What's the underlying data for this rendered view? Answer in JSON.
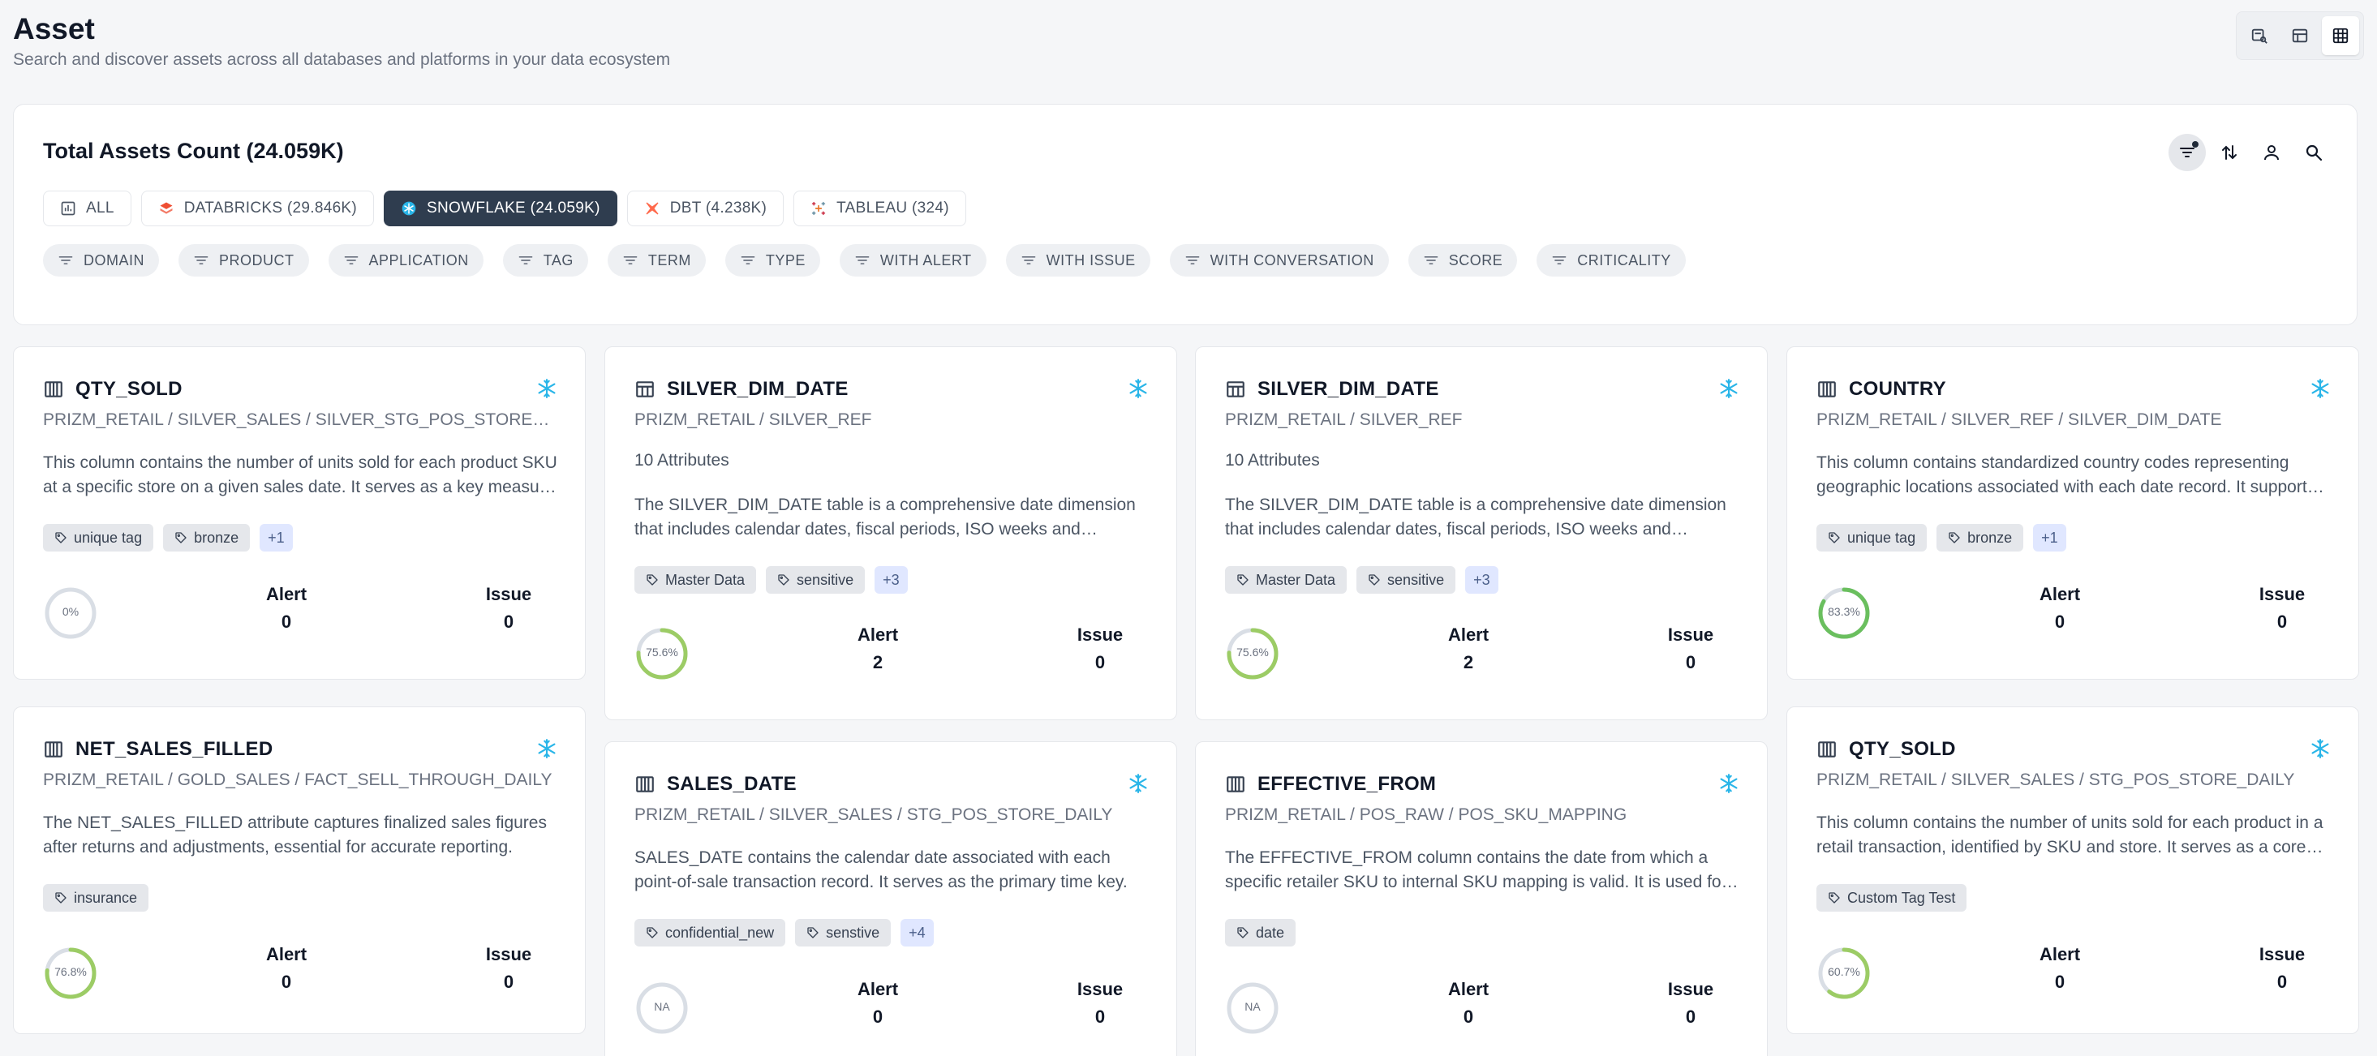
{
  "header": {
    "title": "Asset",
    "subtitle": "Search and discover assets across all databases and platforms in your data ecosystem"
  },
  "view_switch": [
    {
      "icon": "search-list-icon"
    },
    {
      "icon": "table-icon"
    },
    {
      "icon": "grid-icon",
      "active": true
    }
  ],
  "summary": {
    "title": "Total Assets Count (24.059K)",
    "actions": [
      {
        "icon": "filter-icon"
      },
      {
        "icon": "sort-icon"
      },
      {
        "icon": "user-icon"
      },
      {
        "icon": "search-icon"
      }
    ],
    "tabs": [
      {
        "label": "ALL",
        "icon": "chart-icon"
      },
      {
        "label": "DATABRICKS (29.846K)",
        "icon": "databricks-icon"
      },
      {
        "label": "SNOWFLAKE (24.059K)",
        "icon": "snowflake-icon",
        "active": true
      },
      {
        "label": "DBT (4.238K)",
        "icon": "dbt-icon"
      },
      {
        "label": "TABLEAU (324)",
        "icon": "tableau-icon"
      }
    ],
    "filters": [
      "DOMAIN",
      "PRODUCT",
      "APPLICATION",
      "TAG",
      "TERM",
      "TYPE",
      "WITH ALERT",
      "WITH ISSUE",
      "WITH CONVERSATION",
      "SCORE",
      "CRITICALITY"
    ]
  },
  "metric_labels": {
    "alert": "Alert",
    "issue": "Issue"
  },
  "cards": [
    {
      "title": "QTY_SOLD",
      "kind": "column",
      "path": "PRIZM_RETAIL / SILVER_SALES / SILVER_STG_POS_STORE_DAILY",
      "description": "This column contains the number of units sold for each product SKU at a specific store on a given sales date. It serves as a key measure for sales analysis.",
      "tags": [
        "unique tag",
        "bronze"
      ],
      "more": "+1",
      "score_label": "0%",
      "score": 0,
      "alert": "0",
      "issue": "0"
    },
    {
      "title": "SILVER_DIM_DATE",
      "kind": "table",
      "path": "PRIZM_RETAIL / SILVER_REF",
      "attributes": "10 Attributes",
      "description": "The SILVER_DIM_DATE table is a comprehensive date dimension that includes calendar dates, fiscal periods, ISO weeks and holidays.",
      "tags": [
        "Master Data",
        "sensitive"
      ],
      "more": "+3",
      "score_label": "75.6%",
      "score": 0.756,
      "alert": "2",
      "issue": "0"
    },
    {
      "title": "SILVER_DIM_DATE",
      "kind": "table",
      "path": "PRIZM_RETAIL / SILVER_REF",
      "attributes": "10 Attributes",
      "description": "The SILVER_DIM_DATE table is a comprehensive date dimension that includes calendar dates, fiscal periods, ISO weeks and holidays.",
      "tags": [
        "Master Data",
        "sensitive"
      ],
      "more": "+3",
      "score_label": "75.6%",
      "score": 0.756,
      "alert": "2",
      "issue": "0"
    },
    {
      "title": "COUNTRY",
      "kind": "column",
      "path": "PRIZM_RETAIL / SILVER_REF / SILVER_DIM_DATE",
      "description": "This column contains standardized country codes representing geographic locations associated with each date record. It supports regional analysis.",
      "tags": [
        "unique tag",
        "bronze"
      ],
      "more": "+1",
      "score_label": "83.3%",
      "score": 0.833,
      "alert": "0",
      "issue": "0"
    },
    {
      "title": "NET_SALES_FILLED",
      "kind": "column",
      "path": "PRIZM_RETAIL / GOLD_SALES / FACT_SELL_THROUGH_DAILY",
      "description": "The NET_SALES_FILLED attribute captures finalized sales figures after returns and adjustments, essential for accurate reporting.",
      "tags": [
        "insurance"
      ],
      "more": "",
      "score_label": "76.8%",
      "score": 0.768,
      "alert": "0",
      "issue": "0"
    },
    {
      "title": "SALES_DATE",
      "kind": "column",
      "path": "PRIZM_RETAIL / SILVER_SALES / STG_POS_STORE_DAILY",
      "description": "SALES_DATE contains the calendar date associated with each point-of-sale transaction record. It serves as the primary time key.",
      "tags": [
        "confidential_new",
        "senstive"
      ],
      "more": "+4",
      "score_label": "NA",
      "score": 0,
      "alert": "0",
      "issue": "0"
    },
    {
      "title": "EFFECTIVE_FROM",
      "kind": "column",
      "path": "PRIZM_RETAIL / POS_RAW / POS_SKU_MAPPING",
      "description": "The EFFECTIVE_FROM column contains the date from which a specific retailer SKU to internal SKU mapping is valid. It is used for history.",
      "tags": [
        "date"
      ],
      "more": "",
      "score_label": "NA",
      "score": 0,
      "alert": "0",
      "issue": "0"
    },
    {
      "title": "QTY_SOLD",
      "kind": "column",
      "path": "PRIZM_RETAIL / SILVER_SALES / STG_POS_STORE_DAILY",
      "description": "This column contains the number of units sold for each product in a retail transaction, identified by SKU and store. It serves as a core measure.",
      "tags": [
        "Custom Tag Test"
      ],
      "more": "",
      "score_label": "60.7%",
      "score": 0.607,
      "alert": "0",
      "issue": "0"
    }
  ]
}
